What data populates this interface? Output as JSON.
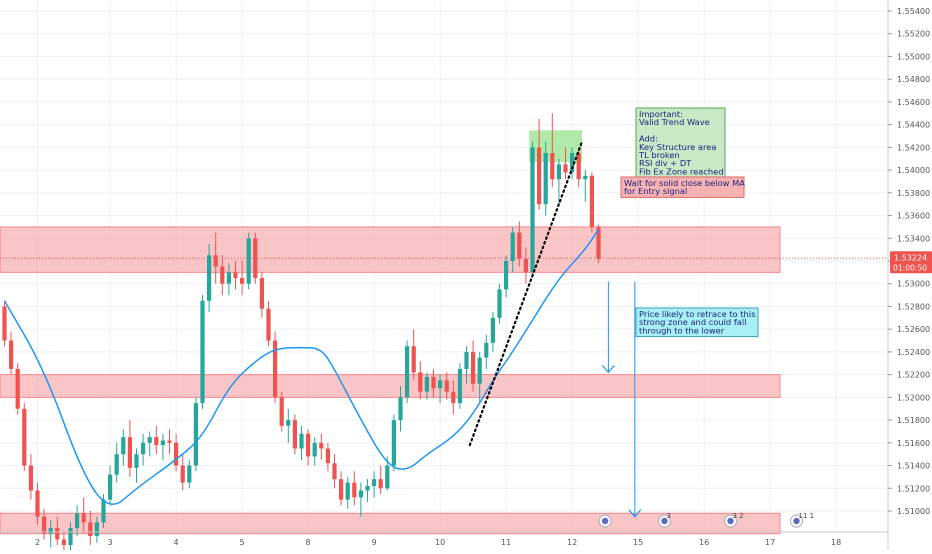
{
  "colors": {
    "bull": "#26a69a",
    "bear": "#ef5350",
    "zone_fill": "#f7a1a4",
    "zone_border": "#f4868a",
    "ma": "#2196f3",
    "trendline": "#000000",
    "arrow": "#2196f3",
    "price_badge": "#ef5350",
    "grid": "#eef0f3",
    "axis_text": "#555555",
    "note_green_bg": "#c9e8c6",
    "note_green_border": "#5aa55a",
    "note_red_bg": "#f7b3b4",
    "note_red_border": "#e06666",
    "note_cyan_bg": "#a8f0f6",
    "note_cyan_border": "#3aa0b8",
    "top_highlight": "#a6e8a0"
  },
  "chart_data": {
    "type": "candlestick",
    "y_ticks": [
      "1.55400",
      "1.55200",
      "1.55000",
      "1.54800",
      "1.54600",
      "1.54400",
      "1.54200",
      "1.54000",
      "1.53800",
      "1.53600",
      "1.53400",
      "1.53200",
      "1.53000",
      "1.52800",
      "1.52600",
      "1.52400",
      "1.52200",
      "1.52000",
      "1.51800",
      "1.51600",
      "1.51400",
      "1.51200",
      "1.51000"
    ],
    "x_ticks": [
      {
        "label": "2",
        "bar": 5
      },
      {
        "label": "3",
        "bar": 16
      },
      {
        "label": "4",
        "bar": 26
      },
      {
        "label": "5",
        "bar": 36
      },
      {
        "label": "8",
        "bar": 46
      },
      {
        "label": "9",
        "bar": 56
      },
      {
        "label": "10",
        "bar": 66
      },
      {
        "label": "11",
        "bar": 76
      },
      {
        "label": "12",
        "bar": 86
      },
      {
        "label": "15",
        "bar": 96
      },
      {
        "label": "16",
        "bar": 106
      },
      {
        "label": "17",
        "bar": 116
      },
      {
        "label": "18",
        "bar": 126
      }
    ],
    "current_price": "1.53224",
    "countdown": "01:00:50",
    "candles": [
      [
        1.528,
        1.5285,
        1.5245,
        1.525
      ],
      [
        1.525,
        1.5258,
        1.522,
        1.5225
      ],
      [
        1.5225,
        1.523,
        1.5185,
        1.519
      ],
      [
        1.519,
        1.5195,
        1.5135,
        1.514
      ],
      [
        1.514,
        1.515,
        1.511,
        1.5118
      ],
      [
        1.5118,
        1.5125,
        1.5088,
        1.5095
      ],
      [
        1.5095,
        1.5102,
        1.5075,
        1.508
      ],
      [
        1.508,
        1.5092,
        1.5068,
        1.5085
      ],
      [
        1.5085,
        1.5095,
        1.507,
        1.5075
      ],
      [
        1.5075,
        1.5082,
        1.5062,
        1.507
      ],
      [
        1.507,
        1.509,
        1.5065,
        1.5085
      ],
      [
        1.5085,
        1.5105,
        1.5078,
        1.5098
      ],
      [
        1.5098,
        1.5112,
        1.508,
        1.509
      ],
      [
        1.509,
        1.51,
        1.507,
        1.5078
      ],
      [
        1.5078,
        1.5095,
        1.5072,
        1.509
      ],
      [
        1.509,
        1.5115,
        1.5085,
        1.511
      ],
      [
        1.511,
        1.514,
        1.5105,
        1.5132
      ],
      [
        1.5132,
        1.516,
        1.5125,
        1.515
      ],
      [
        1.515,
        1.5172,
        1.514,
        1.5165
      ],
      [
        1.5165,
        1.518,
        1.513,
        1.5138
      ],
      [
        1.5138,
        1.5155,
        1.5125,
        1.515
      ],
      [
        1.515,
        1.5168,
        1.514,
        1.516
      ],
      [
        1.516,
        1.517,
        1.5148,
        1.5165
      ],
      [
        1.5165,
        1.5175,
        1.515,
        1.5158
      ],
      [
        1.5158,
        1.5168,
        1.5145,
        1.5162
      ],
      [
        1.5162,
        1.5172,
        1.515,
        1.516
      ],
      [
        1.516,
        1.5168,
        1.5135,
        1.514
      ],
      [
        1.514,
        1.515,
        1.5118,
        1.5125
      ],
      [
        1.5125,
        1.5145,
        1.512,
        1.514
      ],
      [
        1.514,
        1.52,
        1.5135,
        1.5195
      ],
      [
        1.5195,
        1.529,
        1.519,
        1.5285
      ],
      [
        1.5285,
        1.5335,
        1.5275,
        1.5325
      ],
      [
        1.5325,
        1.5345,
        1.53,
        1.5315
      ],
      [
        1.5315,
        1.5325,
        1.529,
        1.53
      ],
      [
        1.53,
        1.5318,
        1.529,
        1.531
      ],
      [
        1.531,
        1.532,
        1.5295,
        1.5305
      ],
      [
        1.5305,
        1.532,
        1.529,
        1.53
      ],
      [
        1.53,
        1.5345,
        1.5295,
        1.534
      ],
      [
        1.534,
        1.5345,
        1.53,
        1.5305
      ],
      [
        1.5305,
        1.531,
        1.527,
        1.5278
      ],
      [
        1.5278,
        1.5285,
        1.5245,
        1.525
      ],
      [
        1.525,
        1.5258,
        1.5195,
        1.52
      ],
      [
        1.52,
        1.5205,
        1.517,
        1.5175
      ],
      [
        1.5175,
        1.519,
        1.516,
        1.518
      ],
      [
        1.518,
        1.5185,
        1.515,
        1.5155
      ],
      [
        1.5155,
        1.5175,
        1.5145,
        1.5168
      ],
      [
        1.5168,
        1.5172,
        1.514,
        1.5148
      ],
      [
        1.5148,
        1.5165,
        1.514,
        1.516
      ],
      [
        1.516,
        1.5168,
        1.5145,
        1.5155
      ],
      [
        1.5155,
        1.516,
        1.5135,
        1.5142
      ],
      [
        1.5142,
        1.515,
        1.512,
        1.5128
      ],
      [
        1.5128,
        1.5135,
        1.5105,
        1.511
      ],
      [
        1.511,
        1.513,
        1.5102,
        1.5125
      ],
      [
        1.5125,
        1.5135,
        1.5105,
        1.5112
      ],
      [
        1.5112,
        1.5125,
        1.5095,
        1.5118
      ],
      [
        1.5118,
        1.5128,
        1.5108,
        1.5122
      ],
      [
        1.5122,
        1.5135,
        1.5112,
        1.5128
      ],
      [
        1.5128,
        1.514,
        1.5115,
        1.512
      ],
      [
        1.512,
        1.5148,
        1.5118,
        1.514
      ],
      [
        1.514,
        1.5185,
        1.5135,
        1.518
      ],
      [
        1.518,
        1.521,
        1.517,
        1.52
      ],
      [
        1.52,
        1.525,
        1.5195,
        1.5245
      ],
      [
        1.5245,
        1.526,
        1.5215,
        1.5222
      ],
      [
        1.5222,
        1.5232,
        1.5198,
        1.5205
      ],
      [
        1.5205,
        1.5222,
        1.5198,
        1.5218
      ],
      [
        1.5218,
        1.5225,
        1.52,
        1.5208
      ],
      [
        1.5208,
        1.522,
        1.5195,
        1.5215
      ],
      [
        1.5215,
        1.5222,
        1.5198,
        1.5205
      ],
      [
        1.5205,
        1.5215,
        1.5185,
        1.5195
      ],
      [
        1.5195,
        1.523,
        1.519,
        1.5225
      ],
      [
        1.5225,
        1.5245,
        1.5212,
        1.524
      ],
      [
        1.524,
        1.525,
        1.5205,
        1.5212
      ],
      [
        1.5212,
        1.524,
        1.5195,
        1.5235
      ],
      [
        1.5235,
        1.5255,
        1.5225,
        1.5248
      ],
      [
        1.5248,
        1.5275,
        1.524,
        1.527
      ],
      [
        1.527,
        1.53,
        1.5265,
        1.5295
      ],
      [
        1.5295,
        1.5325,
        1.5288,
        1.532
      ],
      [
        1.532,
        1.535,
        1.531,
        1.5345
      ],
      [
        1.5345,
        1.5355,
        1.5315,
        1.5322
      ],
      [
        1.5322,
        1.5332,
        1.53,
        1.531
      ],
      [
        1.531,
        1.5425,
        1.5305,
        1.542
      ],
      [
        1.542,
        1.5445,
        1.5365,
        1.537
      ],
      [
        1.537,
        1.5425,
        1.536,
        1.5415
      ],
      [
        1.5415,
        1.545,
        1.5385,
        1.5392
      ],
      [
        1.5392,
        1.541,
        1.537,
        1.5405
      ],
      [
        1.5405,
        1.542,
        1.5392,
        1.5398
      ],
      [
        1.5398,
        1.542,
        1.5392,
        1.5415
      ],
      [
        1.5415,
        1.542,
        1.5385,
        1.5392
      ],
      [
        1.5392,
        1.54,
        1.5372,
        1.5395
      ],
      [
        1.5395,
        1.5398,
        1.5345,
        1.535
      ],
      [
        1.535,
        1.5352,
        1.5318,
        1.5322
      ]
    ],
    "ma_line": [
      [
        0,
        1.5285
      ],
      [
        6,
        1.5225
      ],
      [
        12,
        1.513
      ],
      [
        16,
        1.51
      ],
      [
        20,
        1.512
      ],
      [
        26,
        1.5145
      ],
      [
        30,
        1.5165
      ],
      [
        34,
        1.521
      ],
      [
        38,
        1.5232
      ],
      [
        41,
        1.5243
      ],
      [
        45,
        1.5244
      ],
      [
        48,
        1.5243
      ],
      [
        50,
        1.5225
      ],
      [
        54,
        1.518
      ],
      [
        58,
        1.514
      ],
      [
        61,
        1.5135
      ],
      [
        64,
        1.515
      ],
      [
        68,
        1.5165
      ],
      [
        71,
        1.5185
      ],
      [
        74,
        1.5215
      ],
      [
        77,
        1.524
      ],
      [
        80,
        1.5268
      ],
      [
        84,
        1.5305
      ],
      [
        88,
        1.533
      ],
      [
        90,
        1.5348
      ]
    ],
    "zones": [
      {
        "top": 1.535,
        "bottom": 1.531
      },
      {
        "top": 1.522,
        "bottom": 1.52
      },
      {
        "top": 1.5098,
        "bottom": 1.508
      }
    ],
    "top_zone": {
      "bar_from": 79.5,
      "bar_to": 87.5,
      "top": 1.5435,
      "bottom": 1.5407
    },
    "trendline": [
      [
        70.5,
        1.5158
      ],
      [
        87.5,
        1.5425
      ]
    ],
    "arrows": [
      {
        "bar": 91.5,
        "from": 1.5302,
        "to": 1.5222
      },
      {
        "bar": 95.5,
        "from": 1.5302,
        "to": 1.5095
      }
    ],
    "event_markers": [
      {
        "bar": 91,
        "label": ""
      },
      {
        "bar": 100,
        "label": "3"
      },
      {
        "bar": 110,
        "label": "3 2"
      },
      {
        "bar": 120,
        "label": "11 1"
      }
    ]
  },
  "notes": {
    "green_lines": [
      "Important:",
      "Valid Trend Wave",
      "",
      "Add:",
      "Key Structure area",
      "TL broken",
      "RSI div + DT",
      "Fib Ex Zone reached"
    ],
    "red_lines": [
      "Wait for solid close below MA",
      "for Entry signal"
    ],
    "cyan_lines": [
      "Price likely to retrace to this",
      "strong zone and could fall",
      "through to the lower"
    ]
  }
}
